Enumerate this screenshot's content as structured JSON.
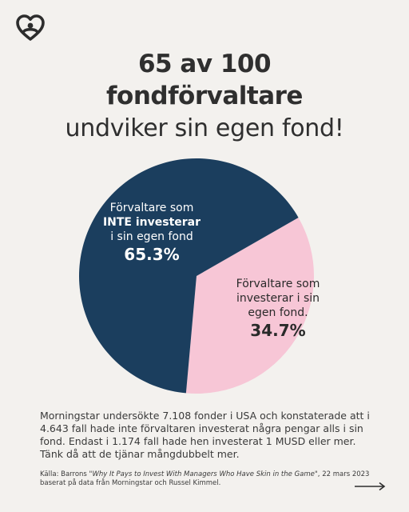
{
  "header": {
    "title_line1": "65 av 100",
    "title_line2": "fondförvaltare",
    "title_line3": "undviker sin egen fond!"
  },
  "chart_data": {
    "type": "pie",
    "slices": [
      {
        "label": "Förvaltare som INTE investerar i sin egen fond",
        "value": 65.3,
        "color": "#1b3e5e"
      },
      {
        "label": "Förvaltare som investerar i sin egen fond.",
        "value": 34.7,
        "color": "#f7c6d6"
      }
    ]
  },
  "labels": {
    "big_line1": "Förvaltare som",
    "big_line2": "INTE investerar",
    "big_line3": "i sin egen fond",
    "big_pct": "65.3%",
    "small_line1": "Förvaltare som",
    "small_line2": "investerar i sin",
    "small_line3": "egen fond.",
    "small_pct": "34.7%"
  },
  "body_text": "Morningstar undersökte 7.108 fonder i USA och konstaterade att i 4.643 fall hade inte förvaltaren investerat några pengar alls i sin fond. Endast i 1.174 fall hade hen investerat 1 MUSD eller mer. Tänk då att de tjänar mångdubbelt mer.",
  "source": {
    "prefix": "Källa: Barrons \"",
    "title": "Why It Pays to Invest With Managers Who Have Skin in the Game",
    "suffix": "\", 22 mars 2023",
    "line2": "baserat på data från Morningstar och Russel Kimmel."
  },
  "colors": {
    "background": "#f3f1ee",
    "navy": "#1b3e5e",
    "pink": "#f7c6d6",
    "text": "#2f2f2f"
  },
  "icons": {
    "logo": "heart-logo-icon",
    "arrow": "arrow-right-icon"
  }
}
